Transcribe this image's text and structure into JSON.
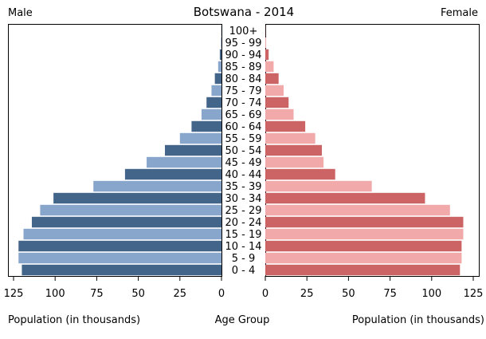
{
  "chart_data": {
    "type": "bar",
    "title": "Botswana - 2014",
    "left_label": "Male",
    "right_label": "Female",
    "center_label": "Age Group",
    "xlabel_left": "Population (in thousands)",
    "xlabel_right": "Population (in thousands)",
    "xlim": [
      0,
      125
    ],
    "ticks": [
      125,
      100,
      75,
      50,
      25,
      0
    ],
    "ticks_right": [
      0,
      25,
      50,
      75,
      100,
      125
    ],
    "categories": [
      "0 - 4",
      "5 - 9",
      "10 - 14",
      "15 - 19",
      "20 - 24",
      "25 - 29",
      "30 - 34",
      "35 - 39",
      "40 - 44",
      "45 - 49",
      "50 - 54",
      "55 - 59",
      "60 - 64",
      "65 - 69",
      "70 - 74",
      "75 - 79",
      "80 - 84",
      "85 - 89",
      "90 - 94",
      "95 - 99",
      "100+"
    ],
    "series": [
      {
        "name": "Male",
        "values": [
          120,
          122,
          122,
          119,
          114,
          109,
          101,
          77,
          58,
          45,
          34,
          25,
          18,
          12,
          9,
          6,
          4,
          2,
          1,
          0.3,
          0.1
        ]
      },
      {
        "name": "Female",
        "values": [
          117,
          118,
          118,
          119,
          119,
          111,
          96,
          64,
          42,
          35,
          34,
          30,
          24,
          17,
          14,
          11,
          8,
          5,
          2,
          0.5,
          0.1
        ]
      }
    ],
    "colors": {
      "male_dark": "#44658a",
      "male_light": "#88a6cc",
      "female_dark": "#cc6466",
      "female_light": "#f2a9a9"
    },
    "grid": false,
    "legend": "none"
  }
}
